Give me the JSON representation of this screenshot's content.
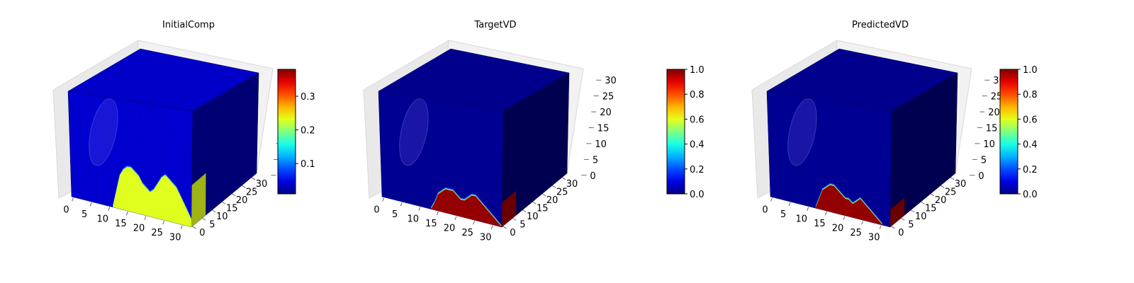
{
  "chart_data": [
    {
      "type": "heatmap",
      "subtype": "3d-voxel-cube",
      "title": "InitialComp",
      "x_ticks": [
        "0",
        "5",
        "10",
        "15",
        "20",
        "25",
        "30"
      ],
      "y_ticks": [
        "0",
        "5",
        "10",
        "15",
        "20",
        "25",
        "30"
      ],
      "z_ticks": [],
      "colorbar": {
        "colormap": "jet",
        "range": [
          0.01,
          0.38
        ],
        "ticks": [
          "0.1",
          "0.2",
          "0.3"
        ],
        "tick_values": [
          0.1,
          0.2,
          0.3
        ]
      },
      "background_value": 0.04,
      "region_value": 0.23,
      "front_face_profile_height": [
        0,
        0,
        0,
        0,
        0,
        0,
        0,
        0,
        0,
        0,
        0,
        0,
        5,
        10,
        12,
        13,
        13,
        12,
        11,
        9,
        8,
        7,
        8,
        10,
        12,
        13,
        12,
        11,
        10,
        8,
        6,
        4,
        2
      ]
    },
    {
      "type": "heatmap",
      "subtype": "3d-voxel-cube",
      "title": "TargetVD",
      "x_ticks": [
        "0",
        "5",
        "10",
        "15",
        "20",
        "25",
        "30"
      ],
      "y_ticks": [
        "0",
        "5",
        "10",
        "15",
        "20",
        "25",
        "30"
      ],
      "z_ticks": [
        "0",
        "5",
        "10",
        "15",
        "20",
        "25",
        "30"
      ],
      "colorbar": {
        "colormap": "jet",
        "range": [
          0.0,
          1.0
        ],
        "ticks": [
          "0.0",
          "0.2",
          "0.4",
          "0.6",
          "0.8",
          "1.0"
        ],
        "tick_values": [
          0.0,
          0.2,
          0.4,
          0.6,
          0.8,
          1.0
        ]
      },
      "background_value": 0.02,
      "region_value": 0.98,
      "front_face_profile_height": [
        0,
        0,
        0,
        0,
        0,
        0,
        0,
        0,
        0,
        0,
        0,
        0,
        0,
        0,
        2,
        5,
        6,
        7,
        7,
        7,
        6,
        5,
        5,
        6,
        7,
        7,
        6,
        5,
        4,
        3,
        2,
        1,
        0
      ]
    },
    {
      "type": "heatmap",
      "subtype": "3d-voxel-cube",
      "title": "PredictedVD",
      "x_ticks": [
        "0",
        "5",
        "10",
        "15",
        "20",
        "25",
        "30"
      ],
      "y_ticks": [
        "0",
        "5",
        "10",
        "15",
        "20",
        "25",
        "30"
      ],
      "z_ticks": [
        "0",
        "5",
        "10",
        "15",
        "20",
        "25",
        "30"
      ],
      "colorbar": {
        "colormap": "jet",
        "range": [
          0.0,
          1.0
        ],
        "ticks": [
          "0.0",
          "0.2",
          "0.4",
          "0.6",
          "0.8",
          "1.0"
        ],
        "tick_values": [
          0.0,
          0.2,
          0.4,
          0.6,
          0.8,
          1.0
        ]
      },
      "background_value": 0.02,
      "region_value": 0.98,
      "front_face_profile_height": [
        0,
        0,
        0,
        0,
        0,
        0,
        0,
        0,
        0,
        0,
        0,
        0,
        0,
        3,
        6,
        7,
        8,
        8,
        7,
        6,
        5,
        5,
        4,
        5,
        6,
        5,
        4,
        3,
        2,
        1,
        0,
        0,
        0
      ]
    }
  ]
}
